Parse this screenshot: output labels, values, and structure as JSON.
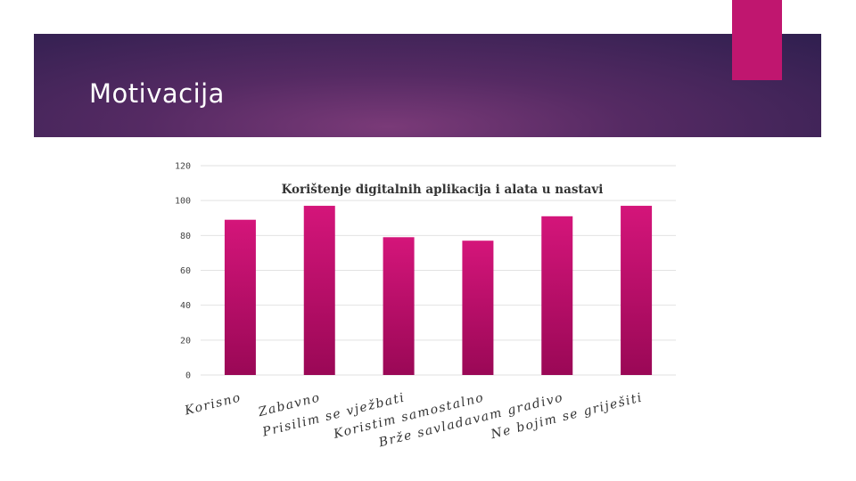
{
  "slide": {
    "title": "Motivacija",
    "accent_color": "#c0166f",
    "banner_color": "#552a63"
  },
  "chart_data": {
    "type": "bar",
    "title": "Korištenje digitalnih aplikacija i alata u nastavi",
    "categories": [
      "Korisno",
      "Zabavno",
      "Prisilim se vježbati",
      "Koristim samostalno",
      "Brže savladavam gradivo",
      "Ne bojim se griješiti"
    ],
    "values": [
      89,
      97,
      79,
      77,
      91,
      97
    ],
    "ylim": [
      0,
      120
    ],
    "yticks": [
      0,
      20,
      40,
      60,
      80,
      100,
      120
    ],
    "xlabel": "",
    "ylabel": "",
    "grid": true,
    "bar_color": "#c0106a",
    "bar_color_dark": "#a0085a"
  }
}
